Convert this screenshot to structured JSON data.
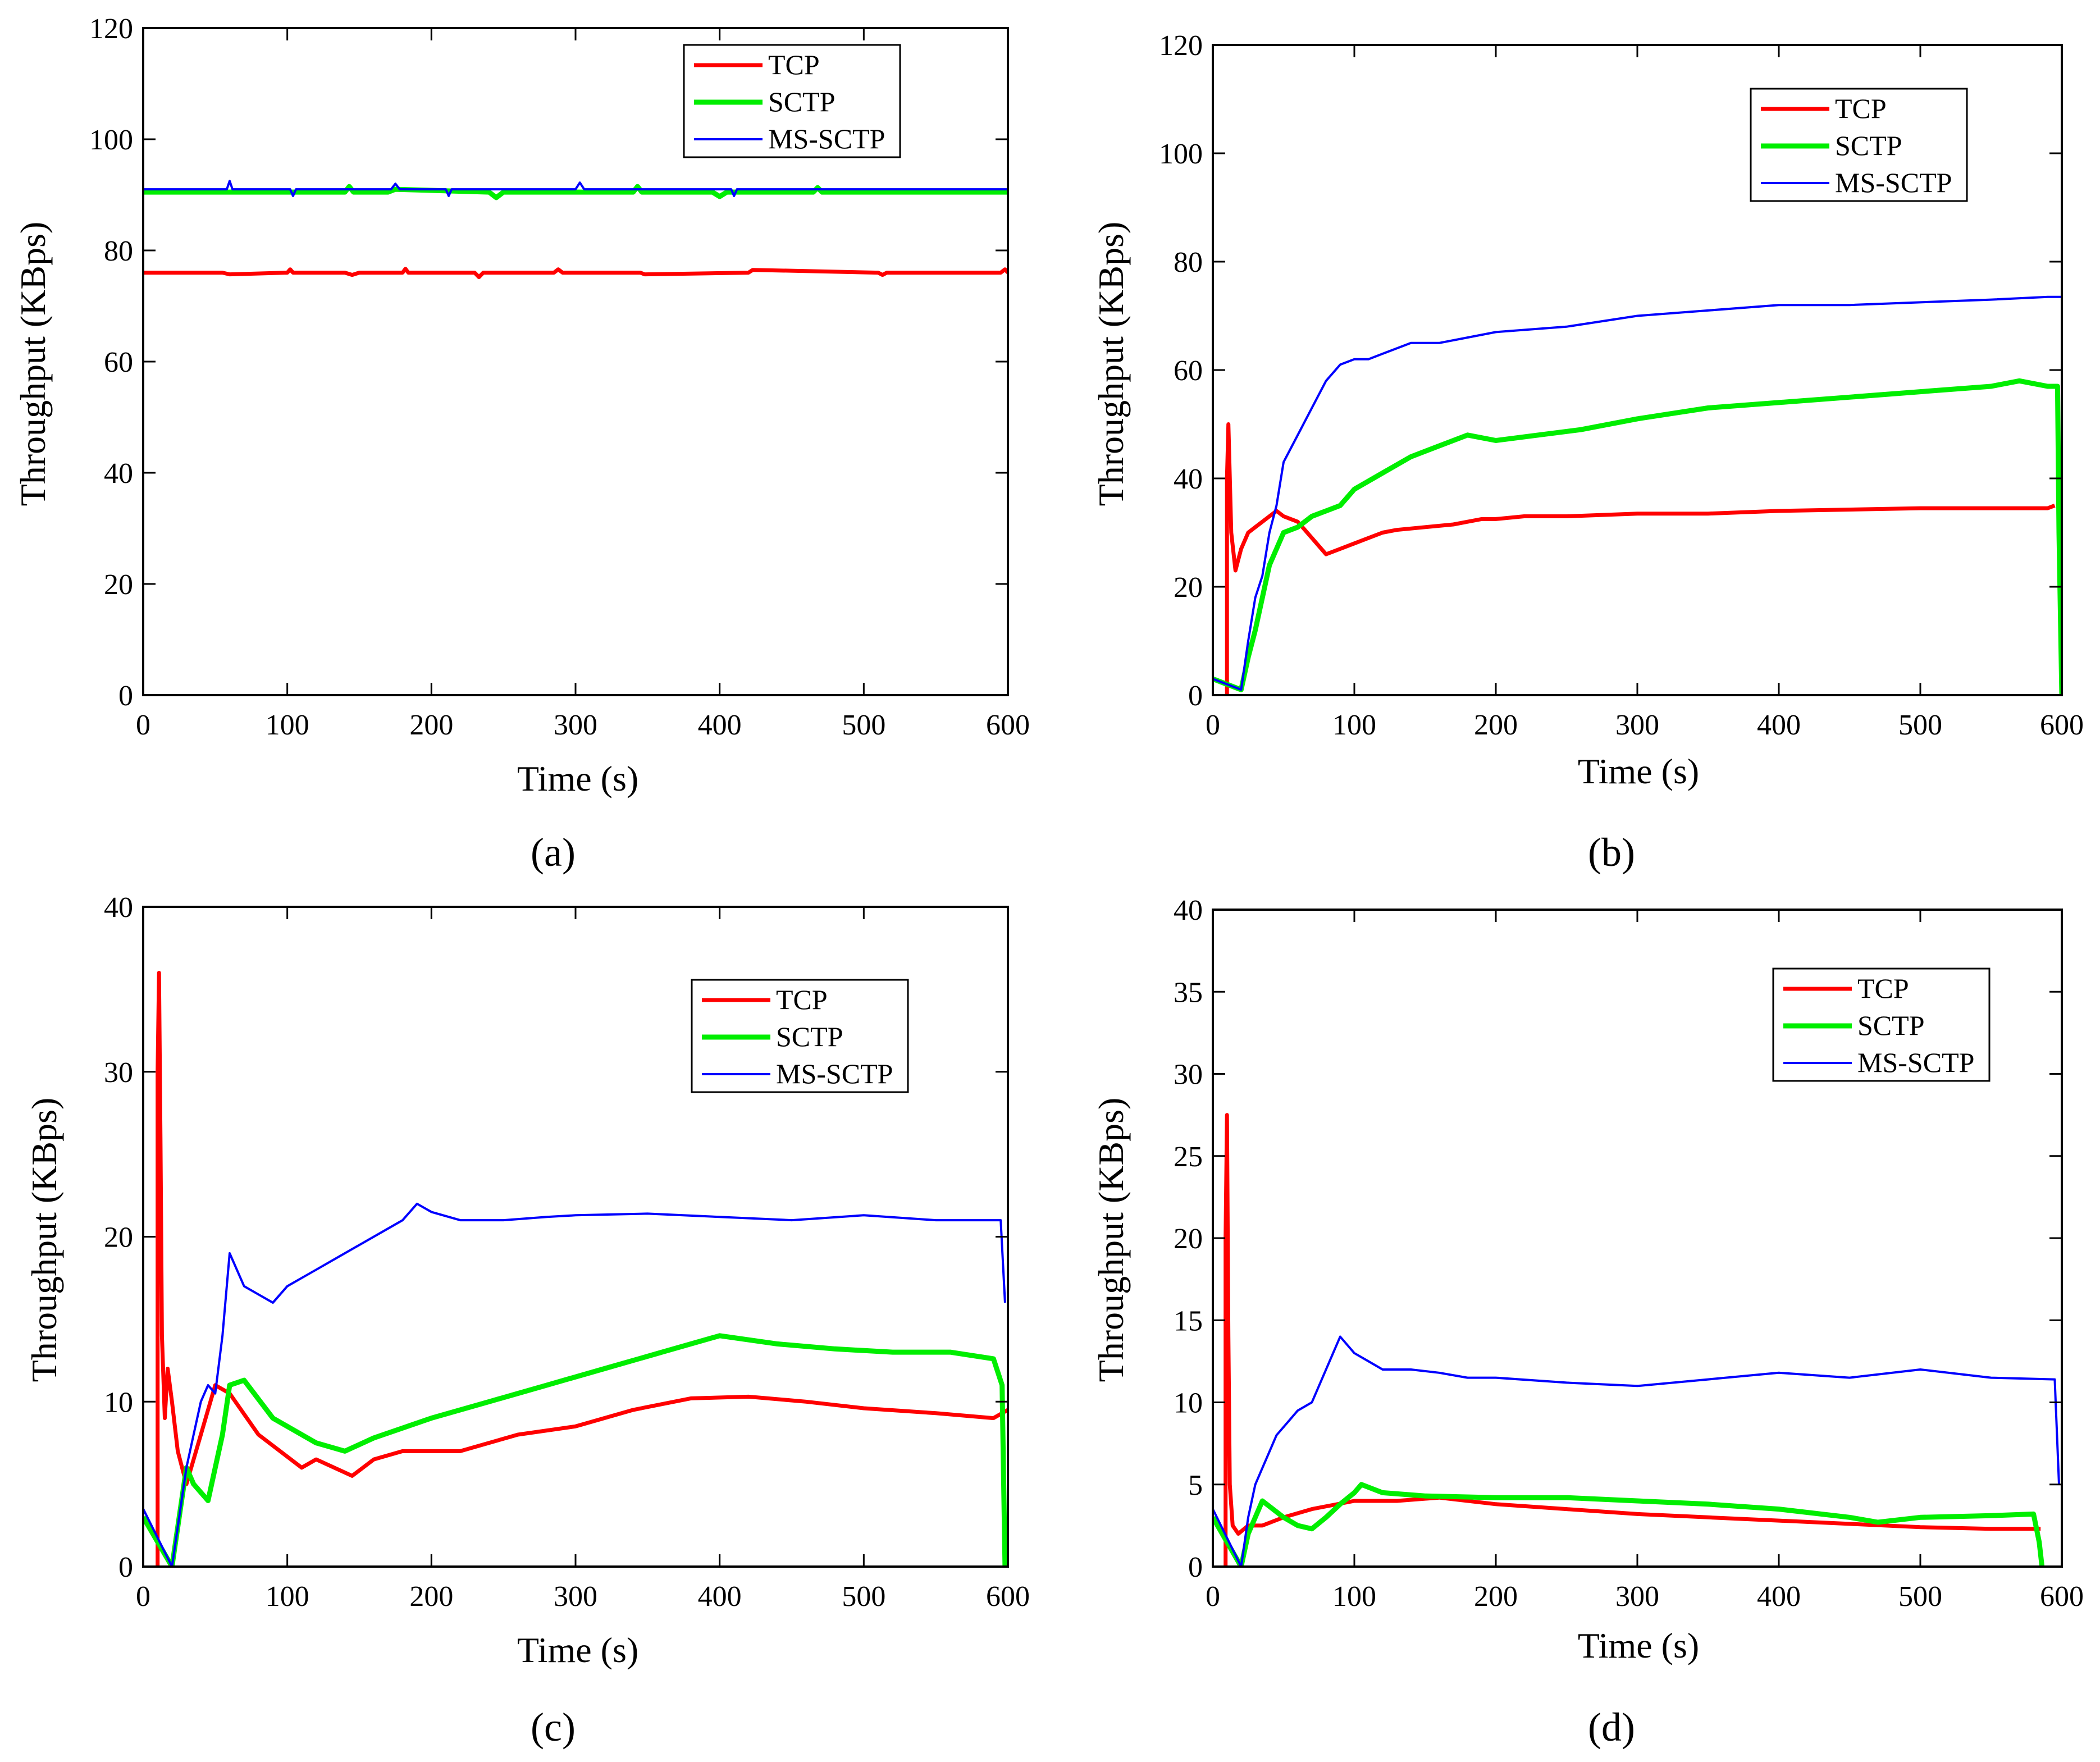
{
  "colors": {
    "TCP": "#ff0000",
    "SCTP": "#00ee00",
    "MS-SCTP": "#0000ff"
  },
  "chart_data": [
    {
      "type": "line",
      "panel_label": "(a)",
      "xlabel": "Time (s)",
      "ylabel": "Throughput (KBps)",
      "xlim": [
        0,
        600
      ],
      "ylim": [
        0,
        120
      ],
      "xticks": [
        0,
        100,
        200,
        300,
        400,
        500,
        600
      ],
      "yticks": [
        0,
        20,
        40,
        60,
        80,
        100,
        120
      ],
      "legend": [
        "TCP",
        "SCTP",
        "MS-SCTP"
      ],
      "legend_position": "top-right",
      "series": [
        {
          "name": "TCP",
          "x": [
            0,
            55,
            60,
            100,
            102,
            104,
            140,
            145,
            150,
            180,
            182,
            184,
            230,
            233,
            236,
            285,
            288,
            291,
            345,
            348,
            420,
            423,
            510,
            513,
            516,
            595,
            598,
            600
          ],
          "y": [
            76,
            76,
            75.7,
            76,
            76.6,
            76,
            76,
            75.6,
            76,
            76,
            76.7,
            76,
            76,
            75.2,
            76,
            76,
            76.6,
            76,
            76,
            75.7,
            76,
            76.5,
            76,
            75.6,
            76,
            76,
            76.6,
            76
          ]
        },
        {
          "name": "SCTP",
          "x": [
            0,
            140,
            143,
            146,
            170,
            175,
            240,
            245,
            250,
            340,
            343,
            346,
            395,
            400,
            405,
            465,
            468,
            471,
            600
          ],
          "y": [
            90.5,
            90.5,
            91.5,
            90.5,
            90.5,
            91,
            90.5,
            89.5,
            90.5,
            90.5,
            91.5,
            90.5,
            90.5,
            89.7,
            90.5,
            90.5,
            91.3,
            90.5,
            90.5
          ]
        },
        {
          "name": "MS-SCTP",
          "x": [
            0,
            58,
            60,
            62,
            102,
            104,
            106,
            172,
            175,
            178,
            210,
            212,
            214,
            300,
            303,
            306,
            310,
            408,
            410,
            412,
            600
          ],
          "y": [
            91,
            91,
            92.5,
            91,
            91,
            89.8,
            91,
            91,
            92,
            91,
            91,
            89.8,
            91,
            91,
            92.2,
            91,
            91,
            91,
            89.8,
            91,
            91
          ]
        }
      ]
    },
    {
      "type": "line",
      "panel_label": "(b)",
      "xlabel": "Time (s)",
      "ylabel": "Throughput (KBps)",
      "xlim": [
        0,
        600
      ],
      "ylim": [
        0,
        120
      ],
      "xticks": [
        0,
        100,
        200,
        300,
        400,
        500,
        600
      ],
      "yticks": [
        0,
        20,
        40,
        60,
        80,
        100,
        120
      ],
      "legend": [
        "TCP",
        "SCTP",
        "MS-SCTP"
      ],
      "legend_position": "top-right",
      "series": [
        {
          "name": "TCP",
          "x": [
            10,
            10,
            11,
            13,
            16,
            20,
            25,
            30,
            35,
            40,
            45,
            50,
            60,
            70,
            80,
            90,
            100,
            110,
            120,
            130,
            150,
            170,
            180,
            190,
            200,
            220,
            250,
            300,
            350,
            400,
            500,
            590,
            595
          ],
          "y": [
            0,
            40,
            50,
            30,
            23,
            27,
            30,
            31,
            32,
            33,
            34,
            33,
            32,
            29,
            26,
            27,
            28,
            29,
            30,
            30.5,
            31,
            31.5,
            32,
            32.5,
            32.5,
            33,
            33,
            33.5,
            33.5,
            34,
            34.5,
            34.5,
            35
          ]
        },
        {
          "name": "SCTP",
          "x": [
            0,
            20,
            25,
            30,
            35,
            40,
            45,
            50,
            60,
            70,
            80,
            90,
            100,
            120,
            140,
            160,
            180,
            200,
            230,
            260,
            300,
            350,
            400,
            450,
            500,
            550,
            570,
            590,
            597,
            598,
            600
          ],
          "y": [
            3,
            1,
            7,
            12,
            18,
            24,
            27,
            30,
            31,
            33,
            34,
            35,
            38,
            41,
            44,
            46,
            48,
            47,
            48,
            49,
            51,
            53,
            54,
            55,
            56,
            57,
            58,
            57,
            57,
            30,
            0
          ]
        },
        {
          "name": "MS-SCTP",
          "x": [
            0,
            20,
            25,
            30,
            35,
            40,
            45,
            50,
            60,
            70,
            80,
            90,
            100,
            110,
            120,
            130,
            140,
            160,
            180,
            200,
            250,
            300,
            350,
            400,
            450,
            500,
            550,
            590,
            600
          ],
          "y": [
            3,
            1,
            10,
            18,
            22,
            30,
            35,
            43,
            48,
            53,
            58,
            61,
            62,
            62,
            63,
            64,
            65,
            65,
            66,
            67,
            68,
            70,
            71,
            72,
            72,
            72.5,
            73,
            73.5,
            73.5
          ]
        }
      ]
    },
    {
      "type": "line",
      "panel_label": "(c)",
      "xlabel": "Time (s)",
      "ylabel": "Throughput (KBps)",
      "xlim": [
        0,
        600
      ],
      "ylim": [
        0,
        40
      ],
      "xticks": [
        0,
        100,
        200,
        300,
        400,
        500,
        600
      ],
      "yticks": [
        0,
        10,
        20,
        30,
        40
      ],
      "legend": [
        "TCP",
        "SCTP",
        "MS-SCTP"
      ],
      "legend_position": "center-right",
      "series": [
        {
          "name": "TCP",
          "x": [
            10,
            10,
            11,
            12,
            13,
            15,
            17,
            20,
            24,
            30,
            40,
            50,
            60,
            80,
            110,
            120,
            145,
            160,
            180,
            220,
            260,
            300,
            340,
            380,
            420,
            460,
            500,
            550,
            590,
            600
          ],
          "y": [
            0,
            30,
            36,
            26,
            14,
            9,
            12,
            10,
            7,
            5,
            8,
            11,
            10.5,
            8,
            6,
            6.5,
            5.5,
            6.5,
            7,
            7,
            8,
            8.5,
            9.5,
            10.2,
            10.3,
            10,
            9.6,
            9.3,
            9,
            9.5
          ]
        },
        {
          "name": "SCTP",
          "x": [
            0,
            20,
            30,
            35,
            45,
            55,
            60,
            70,
            90,
            120,
            140,
            160,
            200,
            240,
            280,
            320,
            360,
            400,
            440,
            480,
            520,
            560,
            590,
            596,
            598
          ],
          "y": [
            3,
            0,
            6,
            5,
            4,
            8,
            11,
            11.3,
            9,
            7.5,
            7,
            7.8,
            9,
            10,
            11,
            12,
            13,
            14,
            13.5,
            13.2,
            13,
            13,
            12.6,
            11,
            0
          ]
        },
        {
          "name": "MS-SCTP",
          "x": [
            0,
            20,
            30,
            35,
            40,
            45,
            50,
            55,
            60,
            70,
            80,
            90,
            100,
            120,
            140,
            160,
            180,
            190,
            200,
            220,
            250,
            280,
            300,
            350,
            400,
            450,
            500,
            550,
            595,
            598
          ],
          "y": [
            3.5,
            0,
            6,
            8,
            10,
            11,
            10.5,
            14,
            19,
            17,
            16.5,
            16,
            17,
            18,
            19,
            20,
            21,
            22,
            21.5,
            21,
            21,
            21.2,
            21.3,
            21.4,
            21.2,
            21,
            21.3,
            21,
            21,
            16
          ]
        }
      ]
    },
    {
      "type": "line",
      "panel_label": "(d)",
      "xlabel": "Time (s)",
      "ylabel": "Throughput (KBps)",
      "xlim": [
        0,
        600
      ],
      "ylim": [
        0,
        40
      ],
      "xticks": [
        0,
        100,
        200,
        300,
        400,
        500,
        600
      ],
      "yticks": [
        0,
        5,
        10,
        15,
        20,
        25,
        30,
        35,
        40
      ],
      "legend": [
        "TCP",
        "SCTP",
        "MS-SCTP"
      ],
      "legend_position": "top-right",
      "series": [
        {
          "name": "TCP",
          "x": [
            9,
            9,
            10,
            11,
            12,
            14,
            18,
            25,
            35,
            50,
            70,
            100,
            130,
            160,
            200,
            250,
            300,
            350,
            400,
            450,
            500,
            550,
            585
          ],
          "y": [
            0,
            20,
            27.5,
            14,
            5,
            2.5,
            2,
            2.5,
            2.5,
            3,
            3.5,
            4,
            4,
            4.2,
            3.8,
            3.5,
            3.2,
            3,
            2.8,
            2.6,
            2.4,
            2.3,
            2.3
          ]
        },
        {
          "name": "SCTP",
          "x": [
            0,
            20,
            25,
            35,
            50,
            60,
            70,
            80,
            90,
            100,
            105,
            120,
            150,
            200,
            250,
            300,
            350,
            400,
            450,
            470,
            500,
            550,
            580,
            584,
            586
          ],
          "y": [
            3,
            0,
            2,
            4,
            3,
            2.5,
            2.3,
            3,
            3.8,
            4.5,
            5,
            4.5,
            4.3,
            4.2,
            4.2,
            4,
            3.8,
            3.5,
            3,
            2.7,
            3,
            3.1,
            3.2,
            1.5,
            0
          ]
        },
        {
          "name": "MS-SCTP",
          "x": [
            0,
            20,
            25,
            30,
            35,
            40,
            45,
            50,
            55,
            60,
            70,
            80,
            90,
            100,
            110,
            120,
            140,
            160,
            180,
            200,
            250,
            300,
            350,
            400,
            450,
            500,
            550,
            595,
            598
          ],
          "y": [
            3.5,
            0,
            3,
            5,
            6,
            7,
            8,
            8.5,
            9,
            9.5,
            10,
            12,
            14,
            13,
            12.5,
            12,
            12,
            11.8,
            11.5,
            11.5,
            11.2,
            11,
            11.4,
            11.8,
            11.5,
            12,
            11.5,
            11.4,
            5
          ]
        }
      ]
    }
  ]
}
